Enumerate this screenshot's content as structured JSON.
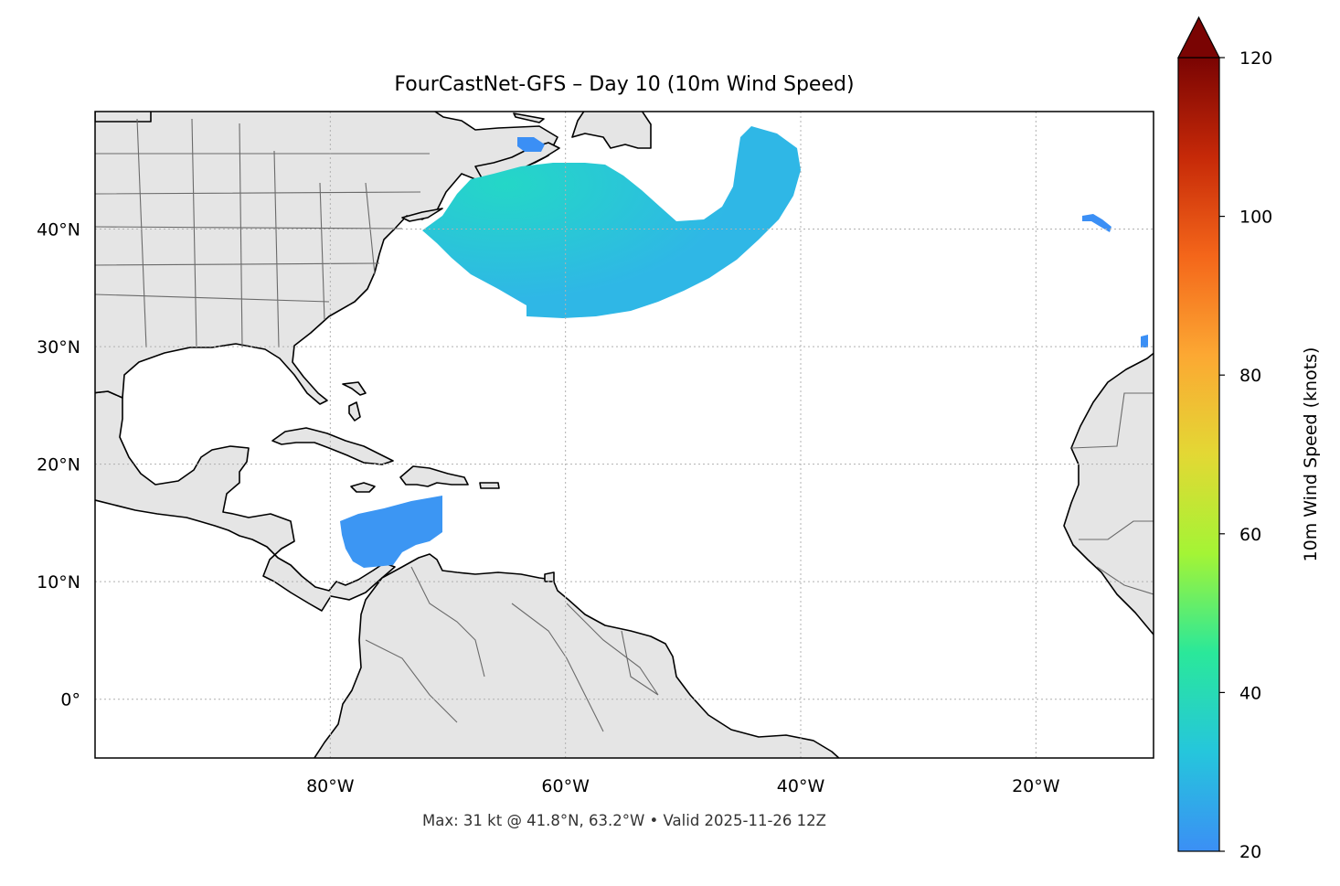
{
  "map": {
    "title": "FourCastNet-GFS – Day 10 (10m Wind Speed)",
    "footer": "Max: 31 kt @ 41.8°N, 63.2°W • Valid 2025-11-26 12Z",
    "extent": {
      "lon_min": -100,
      "lon_max": -10,
      "lat_min": -5,
      "lat_max": 50
    },
    "lon_ticks": [
      {
        "value": -80,
        "label": "80°W"
      },
      {
        "value": -60,
        "label": "60°W"
      },
      {
        "value": -40,
        "label": "40°W"
      },
      {
        "value": -20,
        "label": "20°W"
      }
    ],
    "lat_ticks": [
      {
        "value": 40,
        "label": "40°N"
      },
      {
        "value": 30,
        "label": "30°N"
      },
      {
        "value": 20,
        "label": "20°N"
      },
      {
        "value": 10,
        "label": "10°N"
      },
      {
        "value": 0,
        "label": "0°"
      }
    ],
    "gridlines": true,
    "land_color": "#e5e5e5",
    "ocean_color": "#ffffff",
    "max_point": {
      "lat": 41.8,
      "lon": -63.2,
      "speed_kt": 31
    }
  },
  "colorbar": {
    "label": "10m Wind Speed (knots)",
    "min": 20,
    "max": 120,
    "extend": "max",
    "ticks": [
      {
        "value": 20,
        "label": "20"
      },
      {
        "value": 40,
        "label": "40"
      },
      {
        "value": 60,
        "label": "60"
      },
      {
        "value": 80,
        "label": "80"
      },
      {
        "value": 100,
        "label": "100"
      },
      {
        "value": 120,
        "label": "120"
      }
    ],
    "colormap": "turbo",
    "colors": [
      "#3b8ff5",
      "#25c6dc",
      "#2ae89a",
      "#a4f435",
      "#e3d834",
      "#fca833",
      "#f4661a",
      "#c62908",
      "#7a0403"
    ]
  },
  "wind_areas": [
    {
      "name": "north-atlantic-jet",
      "color": "#2fb7e6",
      "peak_color": "#24d7c7"
    },
    {
      "name": "caribbean-jet",
      "color": "#3c96f3"
    },
    {
      "name": "east-atlantic-spot-1",
      "color": "#3b8ff5"
    },
    {
      "name": "east-atlantic-spot-2",
      "color": "#3b8ff5"
    },
    {
      "name": "gulf-of-st-lawrence-spot",
      "color": "#3b8ff5"
    }
  ]
}
